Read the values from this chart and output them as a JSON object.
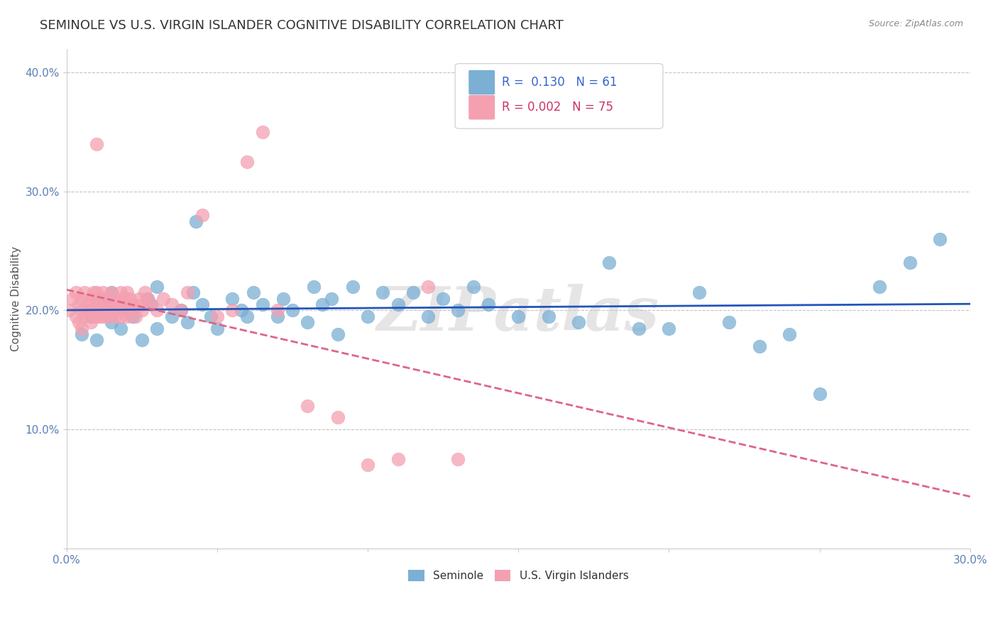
{
  "title": "SEMINOLE VS U.S. VIRGIN ISLANDER COGNITIVE DISABILITY CORRELATION CHART",
  "source": "Source: ZipAtlas.com",
  "xlabel": "",
  "ylabel": "Cognitive Disability",
  "xlim": [
    0.0,
    0.3
  ],
  "ylim": [
    0.0,
    0.42
  ],
  "xticks": [
    0.0,
    0.05,
    0.1,
    0.15,
    0.2,
    0.25,
    0.3
  ],
  "yticks": [
    0.0,
    0.1,
    0.2,
    0.3,
    0.4
  ],
  "xticklabels": [
    "0.0%",
    "",
    "",
    "",
    "",
    "",
    "30.0%"
  ],
  "yticklabels": [
    "",
    "10.0%",
    "20.0%",
    "30.0%",
    "40.0%"
  ],
  "background_color": "#ffffff",
  "grid_color": "#cccccc",
  "seminole_color": "#7bafd4",
  "virgin_color": "#f4a0b0",
  "seminole_R": 0.13,
  "seminole_N": 61,
  "virgin_R": 0.002,
  "virgin_N": 75,
  "seminole_line_color": "#2255bb",
  "virgin_line_color": "#dd6688",
  "seminole_x": [
    0.005,
    0.008,
    0.01,
    0.01,
    0.012,
    0.013,
    0.015,
    0.015,
    0.018,
    0.02,
    0.022,
    0.025,
    0.027,
    0.028,
    0.03,
    0.03,
    0.035,
    0.038,
    0.04,
    0.042,
    0.043,
    0.045,
    0.048,
    0.05,
    0.055,
    0.058,
    0.06,
    0.062,
    0.065,
    0.07,
    0.072,
    0.075,
    0.08,
    0.082,
    0.085,
    0.088,
    0.09,
    0.095,
    0.1,
    0.105,
    0.11,
    0.115,
    0.12,
    0.125,
    0.13,
    0.135,
    0.14,
    0.15,
    0.16,
    0.17,
    0.18,
    0.19,
    0.2,
    0.21,
    0.22,
    0.23,
    0.24,
    0.25,
    0.27,
    0.28,
    0.29
  ],
  "seminole_y": [
    0.18,
    0.195,
    0.2,
    0.175,
    0.205,
    0.21,
    0.19,
    0.215,
    0.185,
    0.2,
    0.195,
    0.175,
    0.21,
    0.205,
    0.185,
    0.22,
    0.195,
    0.2,
    0.19,
    0.215,
    0.275,
    0.205,
    0.195,
    0.185,
    0.21,
    0.2,
    0.195,
    0.215,
    0.205,
    0.195,
    0.21,
    0.2,
    0.19,
    0.22,
    0.205,
    0.21,
    0.18,
    0.22,
    0.195,
    0.215,
    0.205,
    0.215,
    0.195,
    0.21,
    0.2,
    0.22,
    0.205,
    0.195,
    0.195,
    0.19,
    0.24,
    0.185,
    0.185,
    0.215,
    0.19,
    0.17,
    0.18,
    0.13,
    0.22,
    0.24,
    0.26
  ],
  "virgin_x": [
    0.001,
    0.002,
    0.003,
    0.003,
    0.004,
    0.004,
    0.005,
    0.005,
    0.005,
    0.006,
    0.006,
    0.007,
    0.007,
    0.008,
    0.008,
    0.008,
    0.009,
    0.009,
    0.01,
    0.01,
    0.01,
    0.01,
    0.01,
    0.011,
    0.011,
    0.012,
    0.012,
    0.012,
    0.013,
    0.013,
    0.014,
    0.014,
    0.015,
    0.015,
    0.015,
    0.016,
    0.016,
    0.017,
    0.017,
    0.018,
    0.018,
    0.019,
    0.019,
    0.02,
    0.02,
    0.02,
    0.021,
    0.021,
    0.022,
    0.022,
    0.023,
    0.024,
    0.025,
    0.025,
    0.026,
    0.027,
    0.028,
    0.03,
    0.032,
    0.035,
    0.038,
    0.04,
    0.045,
    0.05,
    0.055,
    0.06,
    0.065,
    0.07,
    0.08,
    0.09,
    0.1,
    0.11,
    0.12,
    0.13,
    0.01
  ],
  "virgin_y": [
    0.2,
    0.21,
    0.195,
    0.215,
    0.19,
    0.205,
    0.185,
    0.2,
    0.21,
    0.195,
    0.215,
    0.2,
    0.205,
    0.19,
    0.21,
    0.2,
    0.195,
    0.215,
    0.2,
    0.205,
    0.195,
    0.21,
    0.215,
    0.2,
    0.195,
    0.205,
    0.195,
    0.215,
    0.2,
    0.21,
    0.2,
    0.195,
    0.215,
    0.205,
    0.2,
    0.21,
    0.195,
    0.205,
    0.2,
    0.215,
    0.195,
    0.21,
    0.2,
    0.195,
    0.215,
    0.205,
    0.2,
    0.21,
    0.2,
    0.205,
    0.195,
    0.21,
    0.205,
    0.2,
    0.215,
    0.21,
    0.205,
    0.2,
    0.21,
    0.205,
    0.2,
    0.215,
    0.28,
    0.195,
    0.2,
    0.325,
    0.35,
    0.2,
    0.12,
    0.11,
    0.07,
    0.075,
    0.22,
    0.075,
    0.34
  ],
  "watermark": "ZIPatlas",
  "title_fontsize": 13,
  "axis_label_fontsize": 11,
  "tick_fontsize": 11,
  "legend_fontsize": 12,
  "marker_size": 180
}
